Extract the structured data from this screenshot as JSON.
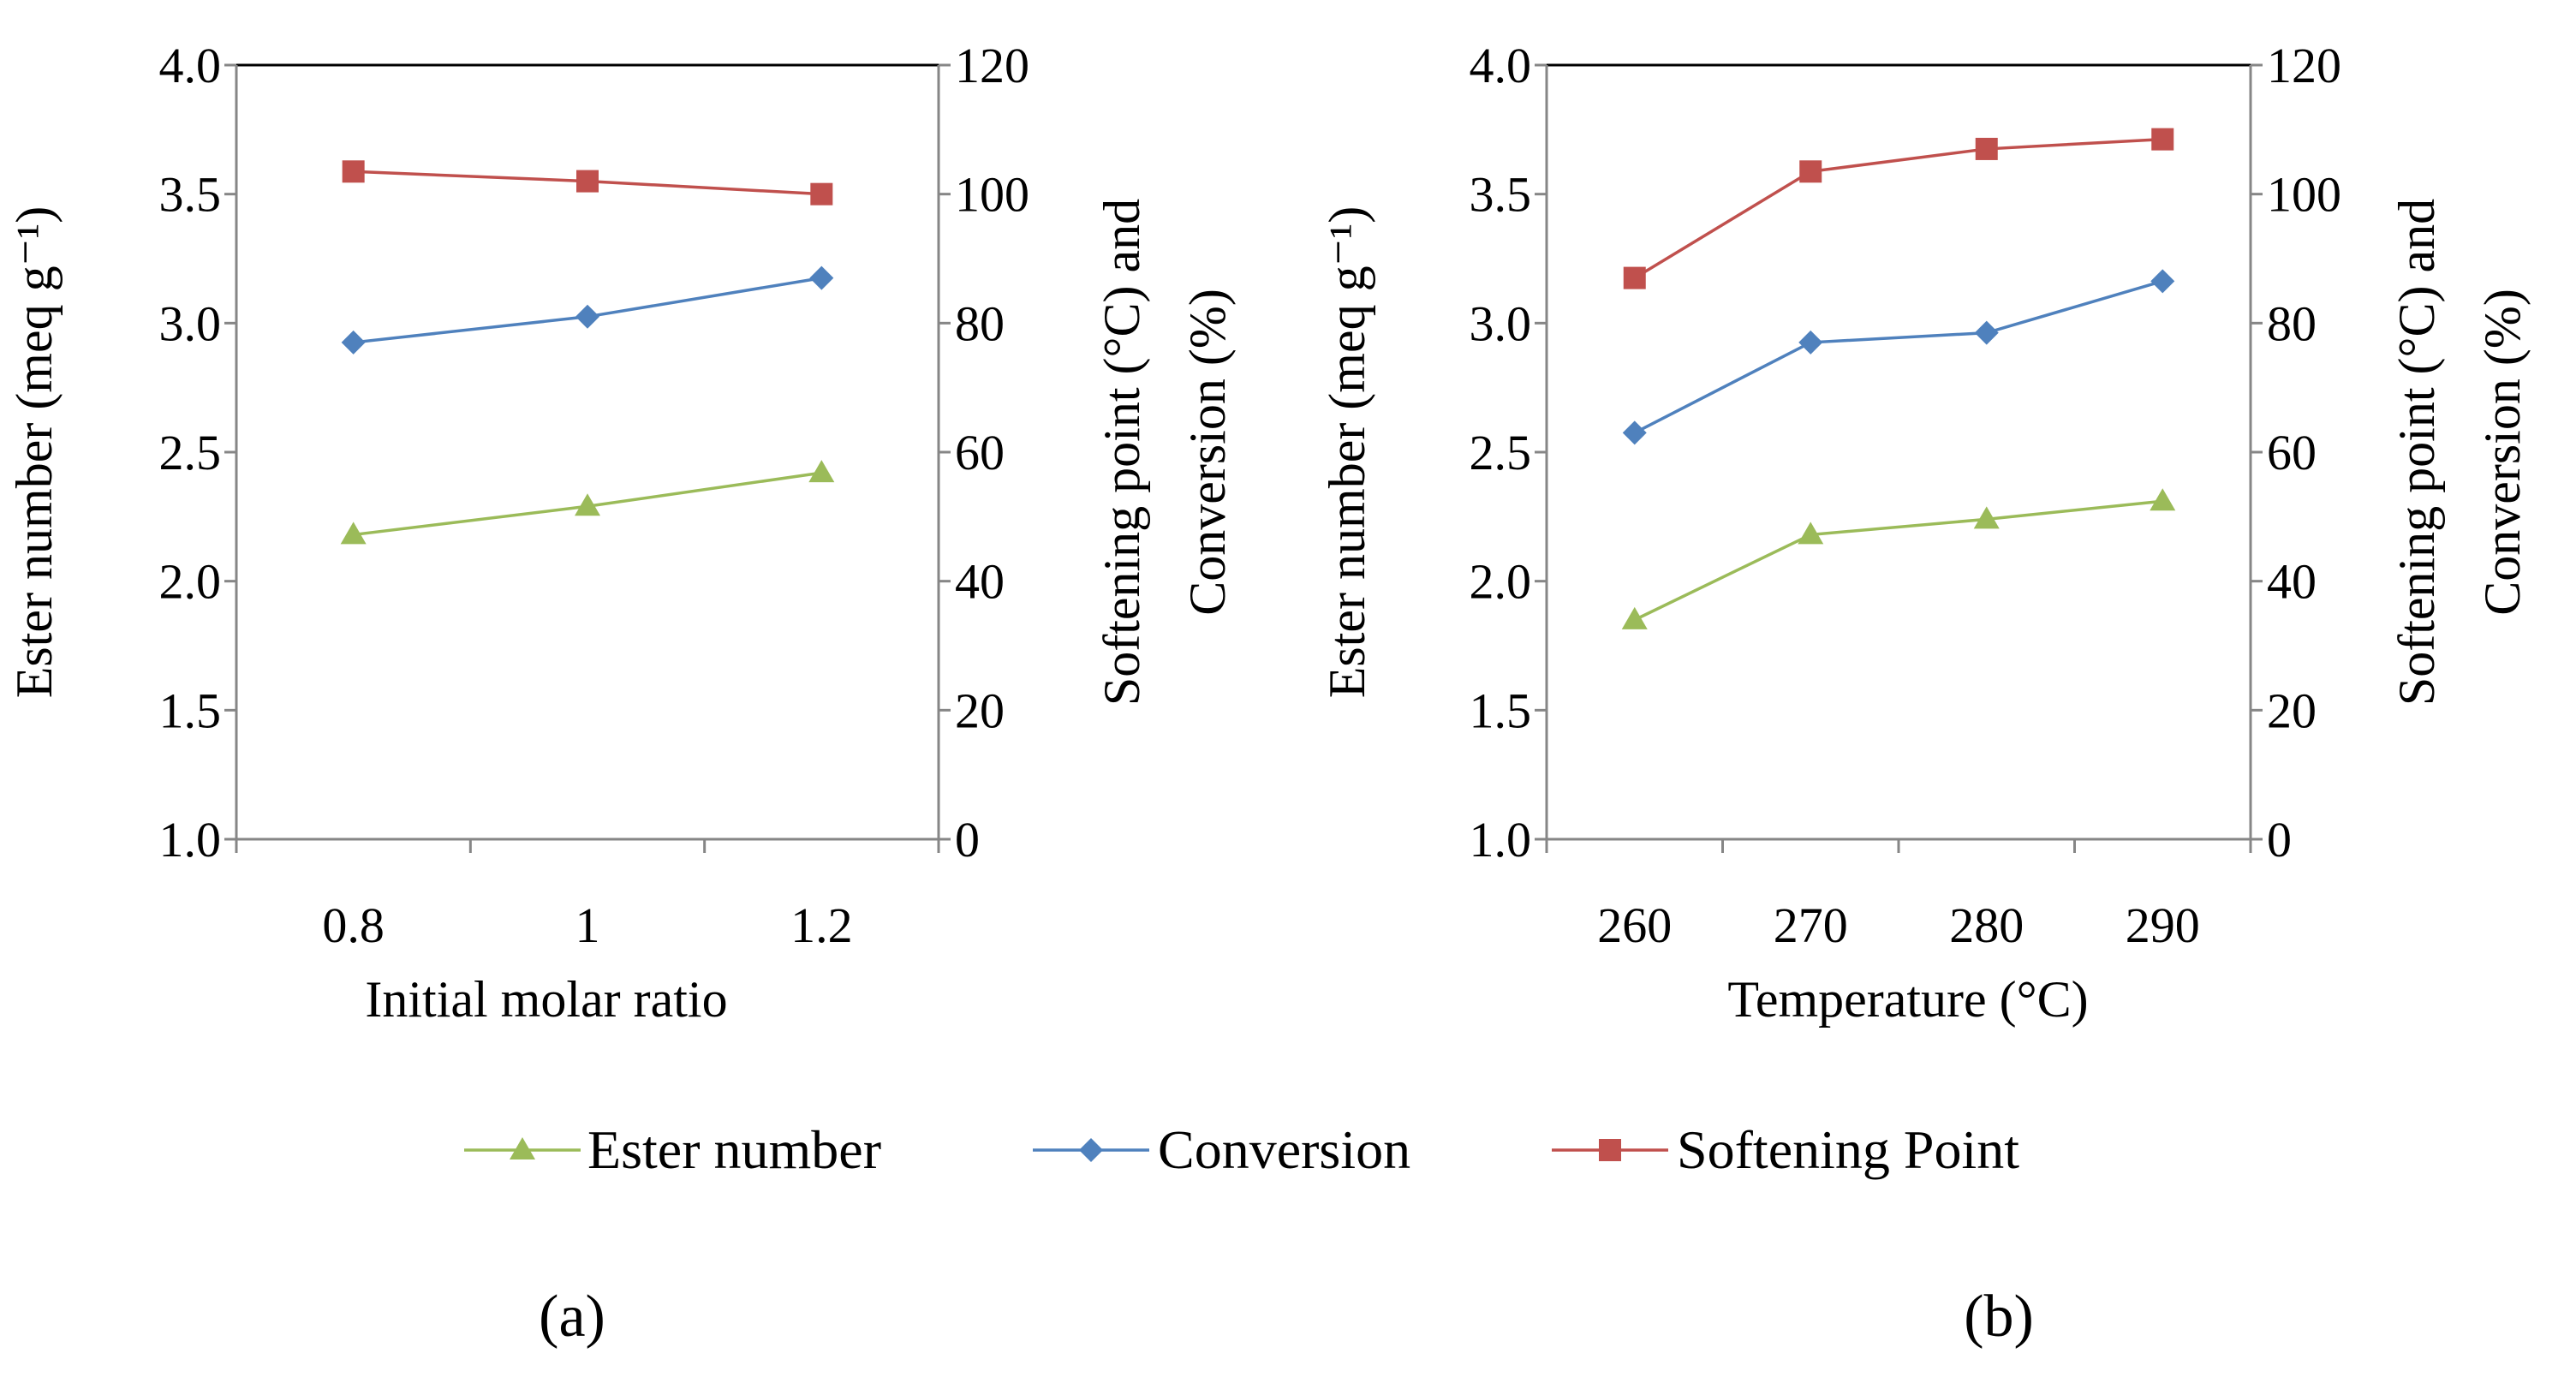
{
  "chart_data": [
    {
      "type": "line",
      "panel_label": "(a)",
      "categories": [
        "0.8",
        "1",
        "1.2"
      ],
      "xlabel": "Initial molar ratio",
      "ylabel_left": "Ester number (meq g⁻¹)",
      "ylabel_right_line1": "Softening point (°C) and",
      "ylabel_right_line2": "Conversion (%)",
      "ylim_left": [
        1.0,
        4.0
      ],
      "yticks_left": [
        "1.0",
        "1.5",
        "2.0",
        "2.5",
        "3.0",
        "3.5",
        "4.0"
      ],
      "ylim_right": [
        0,
        120
      ],
      "yticks_right": [
        "0",
        "20",
        "40",
        "60",
        "80",
        "100",
        "120"
      ],
      "series": [
        {
          "name": "Ester number",
          "axis": "left",
          "color": "#9bbb59",
          "marker": "triangle",
          "values": [
            2.18,
            2.29,
            2.42
          ]
        },
        {
          "name": "Conversion",
          "axis": "right",
          "color": "#4f81bd",
          "marker": "diamond",
          "values": [
            77,
            81,
            87
          ]
        },
        {
          "name": "Softening Point",
          "axis": "right",
          "color": "#c0504d",
          "marker": "square",
          "values": [
            103.5,
            102,
            100
          ]
        }
      ]
    },
    {
      "type": "line",
      "panel_label": "(b)",
      "categories": [
        "260",
        "270",
        "280",
        "290"
      ],
      "xlabel": "Temperature (°C)",
      "ylabel_left": "Ester number (meq g⁻¹)",
      "ylabel_right_line1": "Softening point (°C) and",
      "ylabel_right_line2": "Conversion (%)",
      "ylim_left": [
        1.0,
        4.0
      ],
      "yticks_left": [
        "1.0",
        "1.5",
        "2.0",
        "2.5",
        "3.0",
        "3.5",
        "4.0"
      ],
      "ylim_right": [
        0,
        120
      ],
      "yticks_right": [
        "0",
        "20",
        "40",
        "60",
        "80",
        "100",
        "120"
      ],
      "series": [
        {
          "name": "Ester number",
          "axis": "left",
          "color": "#9bbb59",
          "marker": "triangle",
          "values": [
            1.85,
            2.18,
            2.24,
            2.31
          ]
        },
        {
          "name": "Conversion",
          "axis": "right",
          "color": "#4f81bd",
          "marker": "diamond",
          "values": [
            63,
            77,
            78.5,
            86.5
          ]
        },
        {
          "name": "Softening Point",
          "axis": "right",
          "color": "#c0504d",
          "marker": "square",
          "values": [
            87,
            103.5,
            107,
            108.5
          ]
        }
      ]
    }
  ],
  "legend": [
    {
      "label": "Ester number",
      "color": "#9bbb59",
      "marker": "triangle"
    },
    {
      "label": "Conversion",
      "color": "#4f81bd",
      "marker": "diamond"
    },
    {
      "label": "Softening Point",
      "color": "#c0504d",
      "marker": "square"
    }
  ]
}
